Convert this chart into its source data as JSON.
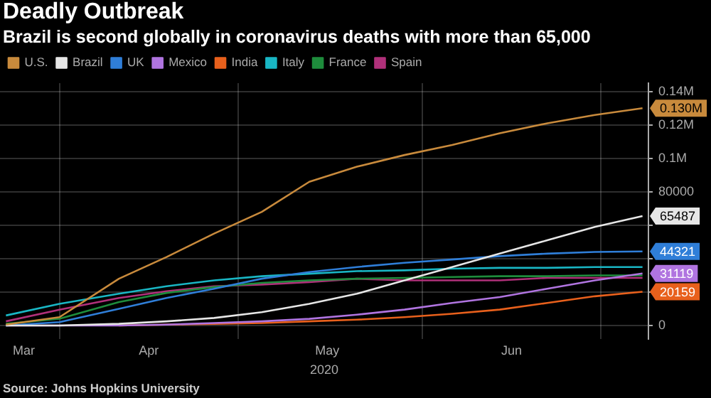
{
  "chart_data": {
    "type": "line",
    "title": "Deadly Outbreak",
    "subtitle": "Brazil is second globally in coronavirus deaths with more than 65,000",
    "xlabel": "2020",
    "annotations": [
      "Source: Johns Hopkins University"
    ],
    "x": [
      "2020-03-23",
      "2020-04-01",
      "2020-04-11",
      "2020-04-19",
      "2020-04-27",
      "2020-05-05",
      "2020-05-13",
      "2020-05-21",
      "2020-05-29",
      "2020-06-06",
      "2020-06-14",
      "2020-06-22",
      "2020-06-30",
      "2020-07-08"
    ],
    "series": [
      {
        "name": "U.S.",
        "color": "#c88a3c",
        "values": [
          500,
          5000,
          28000,
          41000,
          55000,
          68000,
          86000,
          95000,
          102000,
          108000,
          115000,
          121000,
          126000,
          130000
        ],
        "value_labels": [
          null,
          null,
          null,
          null,
          null,
          null,
          null,
          null,
          null,
          null,
          null,
          null,
          null,
          "0.130M"
        ]
      },
      {
        "name": "Brazil",
        "color": "#e6e6e6",
        "values": [
          0,
          0,
          1000,
          2500,
          4500,
          8000,
          13000,
          19000,
          27000,
          35000,
          43000,
          51000,
          59000,
          65487
        ],
        "value_labels": [
          null,
          null,
          null,
          null,
          null,
          null,
          null,
          null,
          null,
          null,
          null,
          null,
          null,
          "65487"
        ]
      },
      {
        "name": "UK",
        "color": "#2f7ed8",
        "values": [
          0,
          2000,
          10000,
          16500,
          22000,
          28000,
          32000,
          35000,
          37500,
          39500,
          41500,
          43000,
          44000,
          44321
        ],
        "value_labels": [
          null,
          null,
          null,
          null,
          null,
          null,
          null,
          null,
          null,
          null,
          null,
          null,
          null,
          "44321"
        ]
      },
      {
        "name": "Mexico",
        "color": "#b074e0",
        "values": [
          0,
          0,
          0,
          500,
          1500,
          2500,
          4000,
          6500,
          9500,
          13500,
          17000,
          22000,
          27000,
          31119
        ],
        "value_labels": [
          null,
          null,
          null,
          null,
          null,
          null,
          null,
          null,
          null,
          null,
          null,
          null,
          null,
          "31119"
        ]
      },
      {
        "name": "India",
        "color": "#e8601c",
        "values": [
          null,
          null,
          0,
          500,
          1000,
          1500,
          2500,
          3500,
          5000,
          7000,
          9500,
          13500,
          17500,
          20159
        ],
        "value_labels": [
          null,
          null,
          null,
          null,
          null,
          null,
          null,
          null,
          null,
          null,
          null,
          null,
          null,
          "20159"
        ]
      },
      {
        "name": "Italy",
        "color": "#19b6c4",
        "values": [
          6000,
          13000,
          19000,
          23500,
          27000,
          29500,
          31000,
          32500,
          33000,
          34000,
          34500,
          34500,
          35000,
          35000
        ]
      },
      {
        "name": "France",
        "color": "#1e8c3c",
        "values": [
          1000,
          4000,
          14000,
          19500,
          23000,
          25500,
          27000,
          28000,
          28500,
          29000,
          29500,
          29500,
          30000,
          30000
        ]
      },
      {
        "name": "Spain",
        "color": "#b0307a",
        "values": [
          2500,
          9500,
          16500,
          20500,
          23500,
          24500,
          26000,
          28000,
          27000,
          27000,
          27000,
          28500,
          28500,
          28500
        ]
      }
    ],
    "xlim": [
      "2020-03-22",
      "2020-07-09"
    ],
    "xticks": [
      {
        "value": "2020-03-26",
        "label": "Mar"
      },
      {
        "value": "2020-04-01",
        "label": null
      },
      {
        "value": "2020-04-16",
        "label": "Apr"
      },
      {
        "value": "2020-05-01",
        "label": null
      },
      {
        "value": "2020-05-16",
        "label": "May"
      },
      {
        "value": "2020-06-01",
        "label": null
      },
      {
        "value": "2020-06-16",
        "label": "Jun"
      },
      {
        "value": "2020-07-01",
        "label": null
      }
    ],
    "ylim": [
      -8000,
      145000
    ],
    "yticks": [
      0,
      {
        "value": 20000,
        "label": null
      },
      {
        "value": 40000,
        "label": null
      },
      {
        "value": 60000,
        "label": null
      },
      80000,
      {
        "value": 100000,
        "label": "0.1M"
      },
      {
        "value": 120000,
        "label": "0.12M"
      },
      {
        "value": 140000,
        "label": "0.14M"
      }
    ],
    "grid": true,
    "legend": "top left",
    "marker": "none",
    "line_style": "solid"
  }
}
